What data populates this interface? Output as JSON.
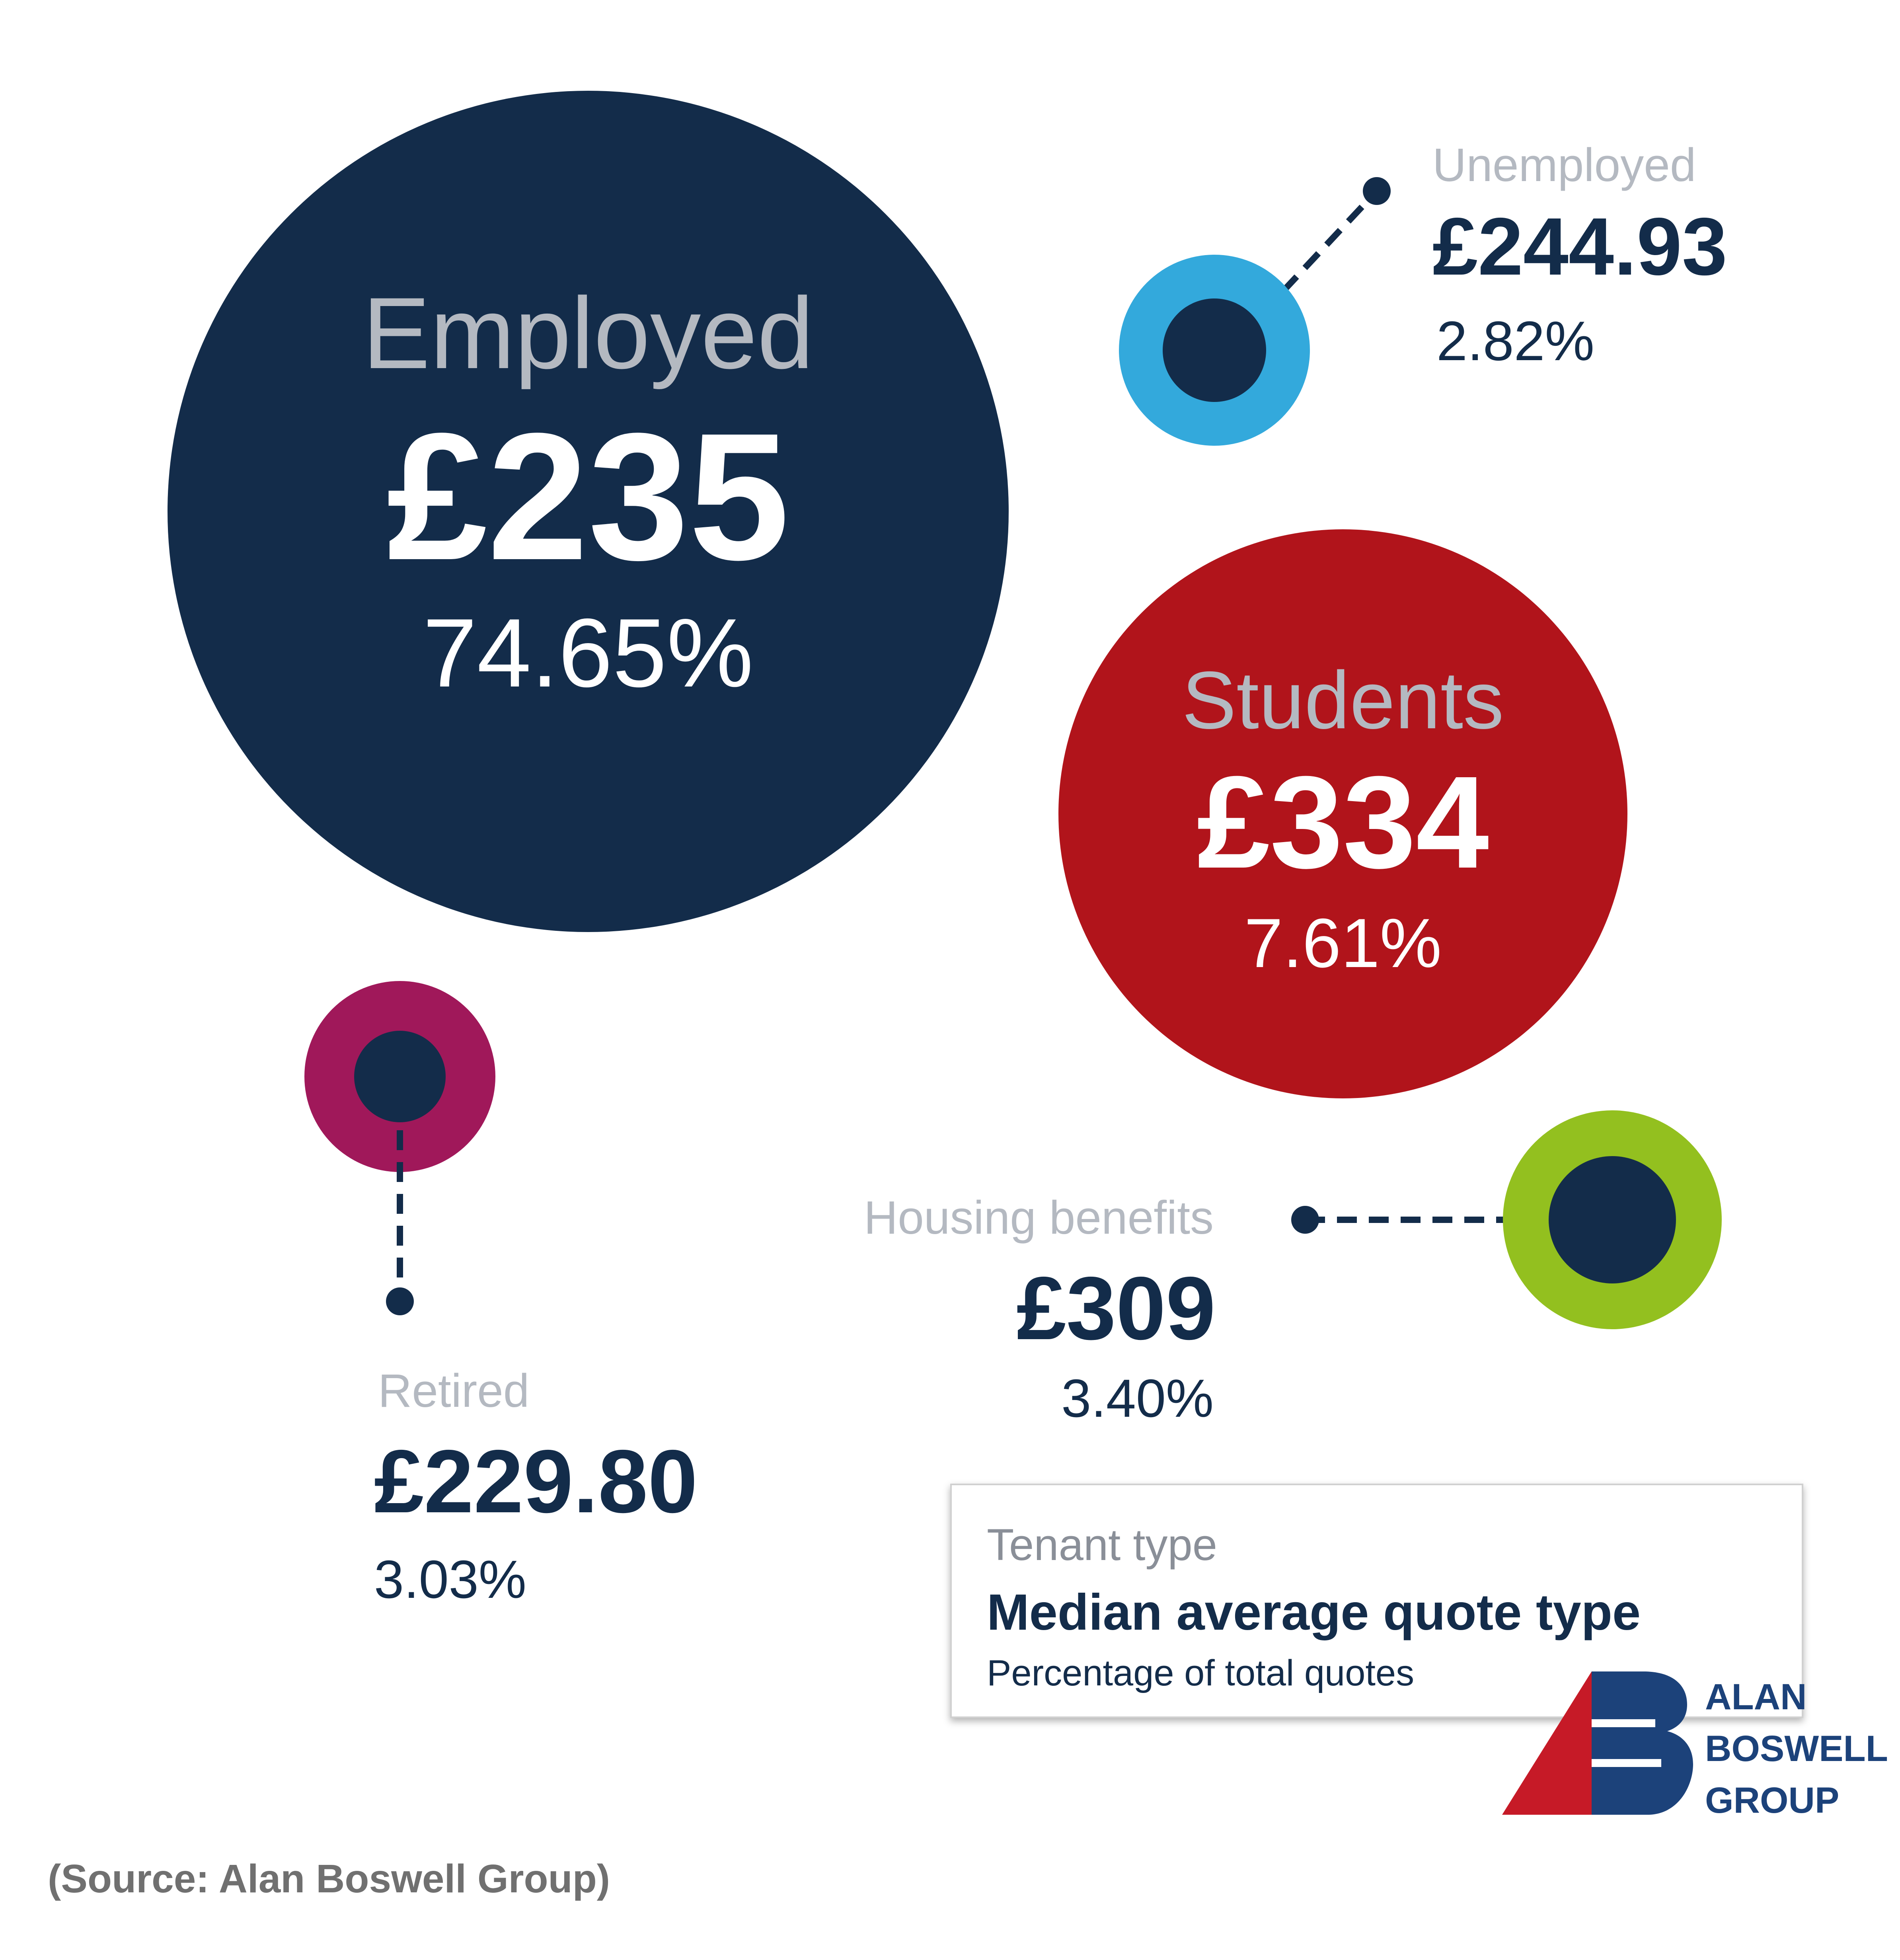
{
  "chart_data": {
    "type": "bubble",
    "title": "",
    "items": [
      {
        "key": "employed",
        "label": "Employed",
        "value": "£235",
        "percent": "74.65%",
        "amount": 235,
        "share": 74.65
      },
      {
        "key": "unemployed",
        "label": "Unemployed",
        "value": "£244.93",
        "percent": "2.82%",
        "amount": 244.93,
        "share": 2.82
      },
      {
        "key": "students",
        "label": "Students",
        "value": "£334",
        "percent": "7.61%",
        "amount": 334,
        "share": 7.61
      },
      {
        "key": "retired",
        "label": "Retired",
        "value": "£229.80",
        "percent": "3.03%",
        "amount": 229.8,
        "share": 3.03
      },
      {
        "key": "housing",
        "label": "Housing benefits",
        "value": "£309",
        "percent": "3.40%",
        "amount": 309,
        "share": 3.4
      }
    ],
    "legend": {
      "heading": "Tenant type",
      "title": "Median average quote type",
      "subtitle": "Percentage of total quotes"
    }
  },
  "source": "(Source: Alan Boswell Group)",
  "logo": {
    "line1": "ALAN",
    "line2": "BOSWELL",
    "line3": "GROUP"
  },
  "colors": {
    "navy": "#132c4a",
    "gray_label": "#b4b9c1",
    "red": "#b1141b",
    "light_blue": "#33a9dc",
    "magenta": "#a0185a",
    "green": "#93c01f",
    "logo_blue": "#1c427a",
    "logo_red": "#c61a27",
    "source_gray": "#707070"
  }
}
